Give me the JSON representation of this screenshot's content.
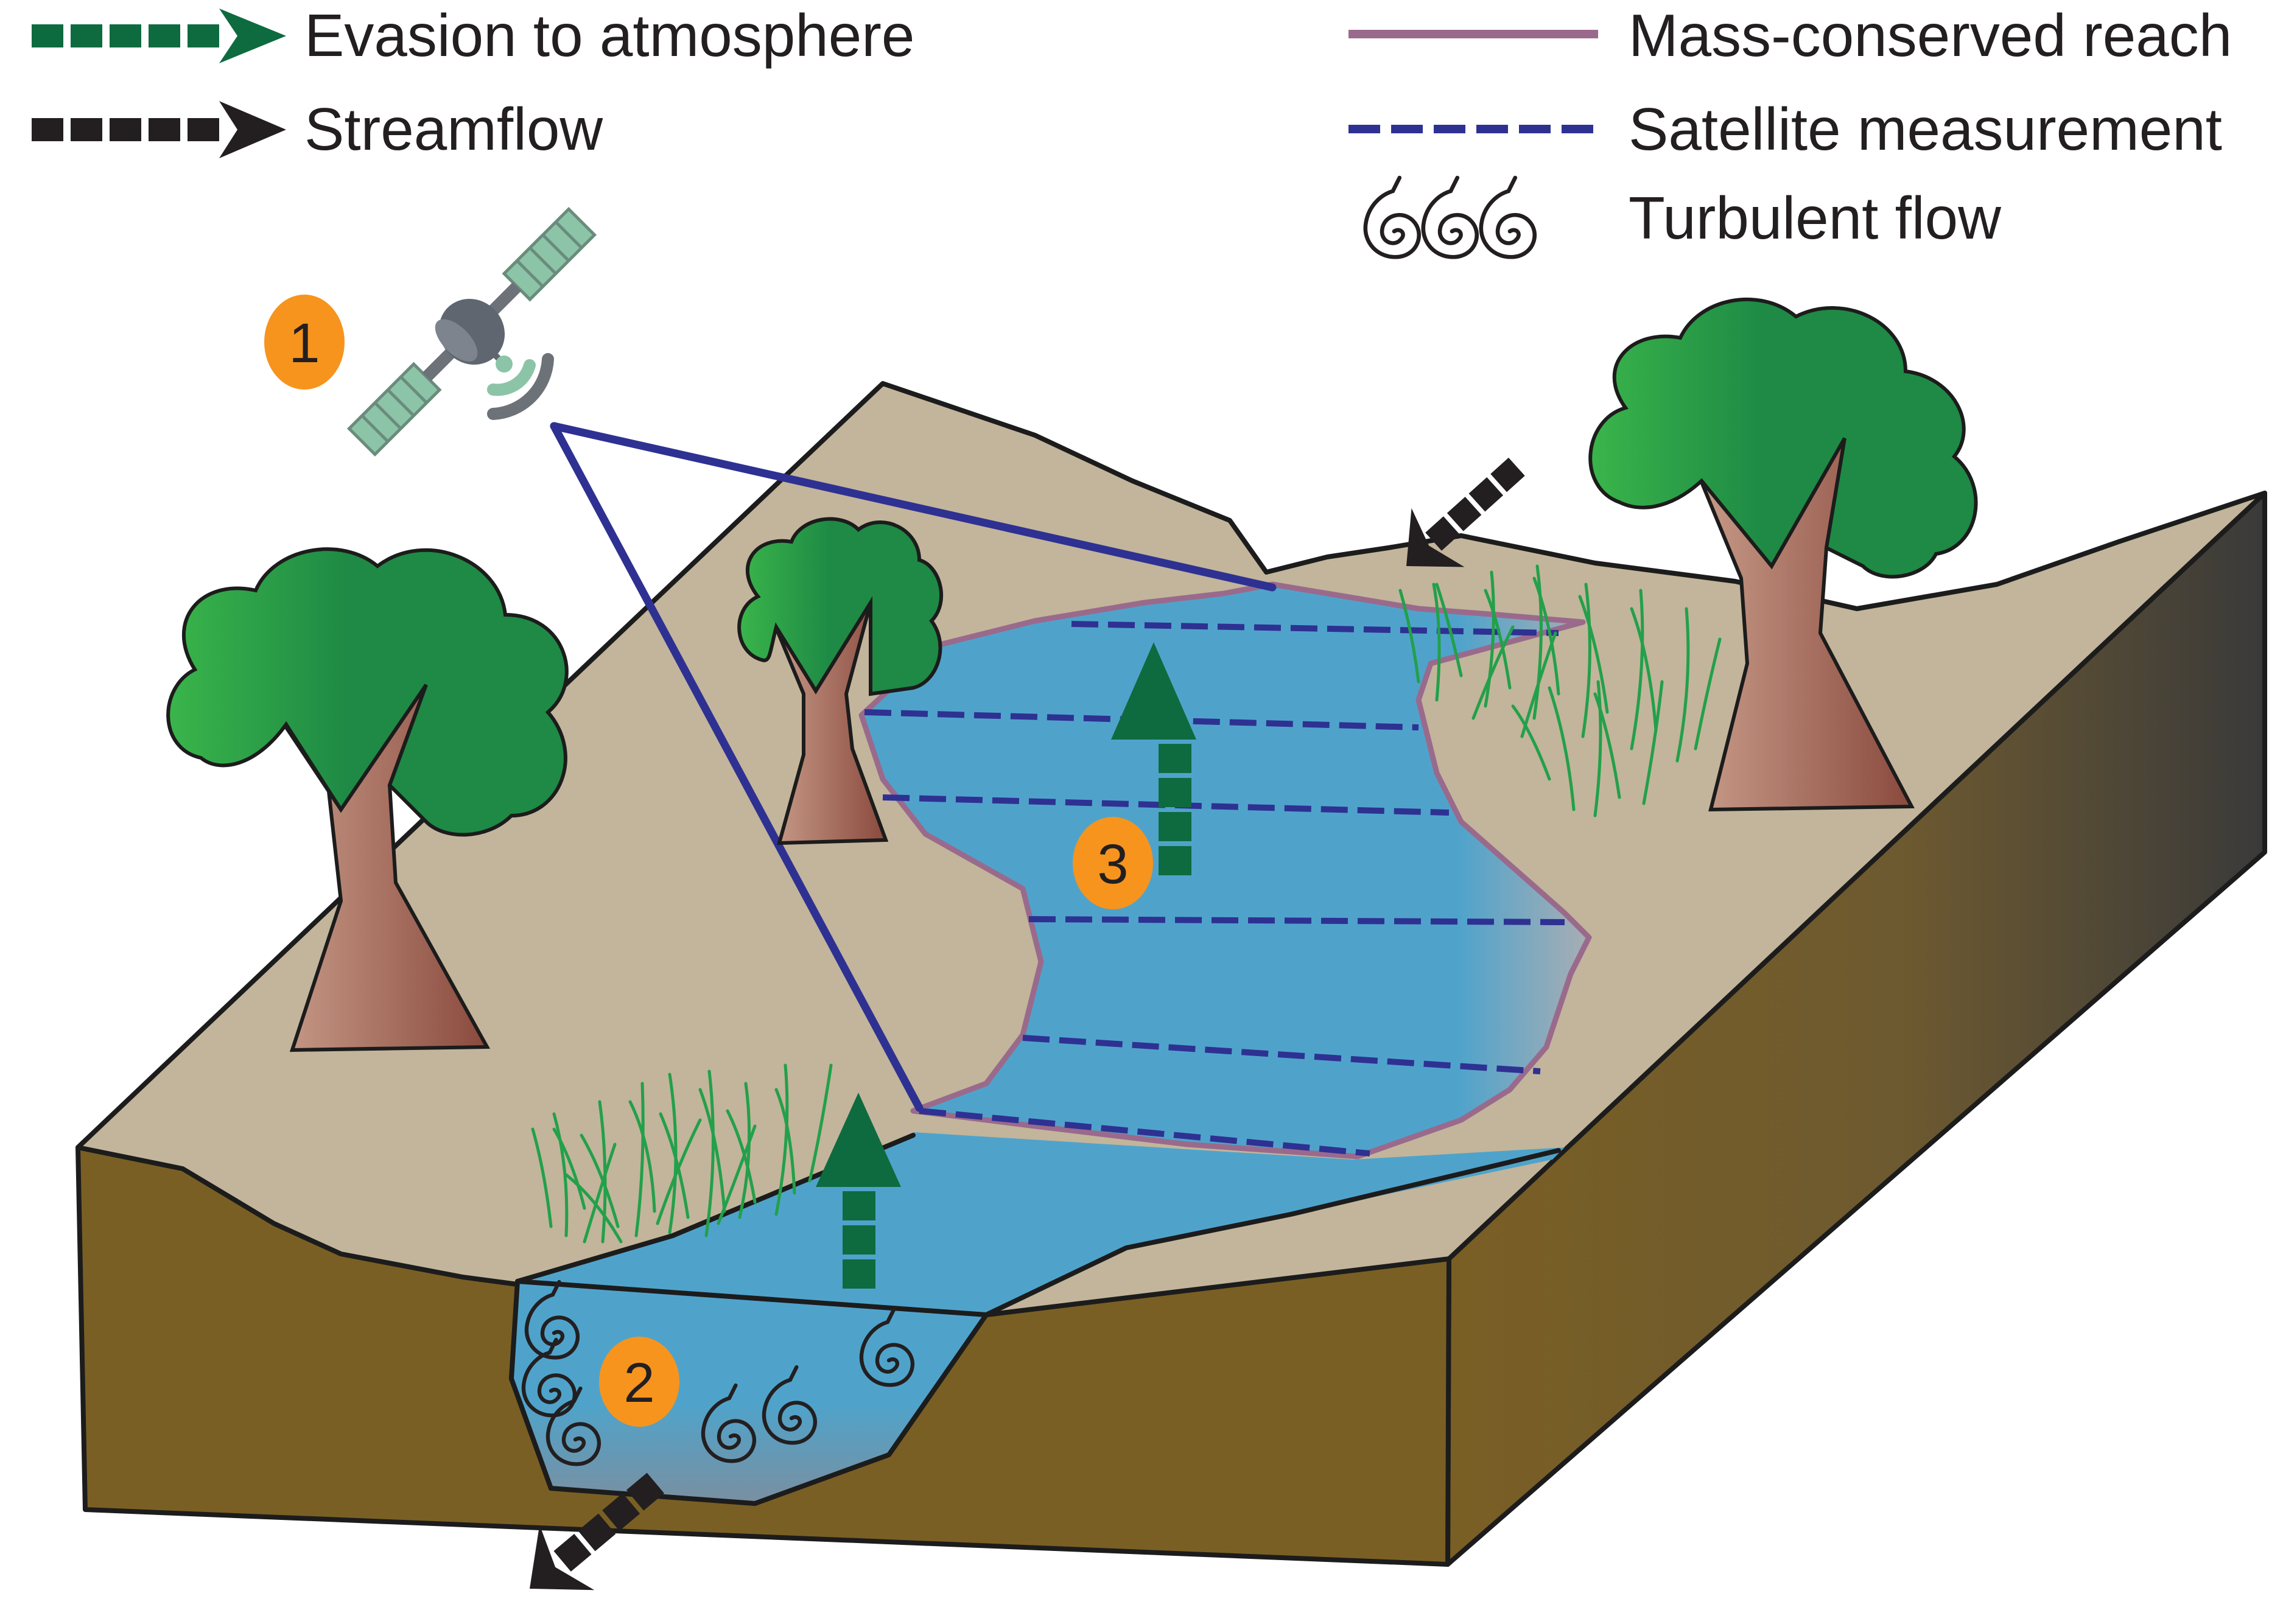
{
  "legend": {
    "left": [
      {
        "label": "Evasion to atmosphere",
        "symbol": "green-dashed-arrow",
        "color": "#0e6b3f"
      },
      {
        "label": "Streamflow",
        "symbol": "black-dashed-arrow",
        "color": "#231f20"
      }
    ],
    "right": [
      {
        "label": "Mass-conserved reach",
        "symbol": "purple-line",
        "color": "#9a6a8c"
      },
      {
        "label": "Satellite measurement",
        "symbol": "blue-dashed-line",
        "color": "#2e3192"
      },
      {
        "label": "Turbulent flow",
        "symbol": "swirl-icons",
        "color": "#231f20"
      }
    ]
  },
  "markers": [
    {
      "number": "1",
      "color": "#f7941d"
    },
    {
      "number": "2",
      "color": "#f7941d"
    },
    {
      "number": "3",
      "color": "#f7941d"
    }
  ],
  "colors": {
    "land": "#c2b59b",
    "soil": "#7a5f24",
    "water": "#4fa3cb",
    "tree_canopy": "#1e8a45",
    "tree_trunk": "#9a5a4a",
    "reach_outline": "#9a6a8c",
    "satellite_lines": "#2e3192",
    "evasion_arrow": "#0e6b3f",
    "streamflow_arrow": "#231f20"
  }
}
